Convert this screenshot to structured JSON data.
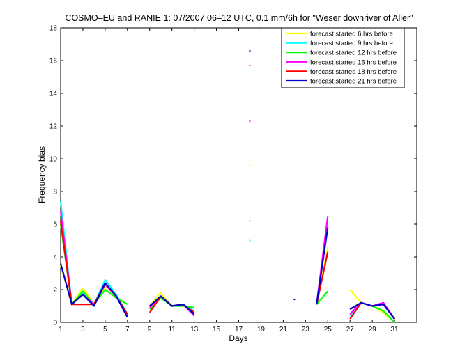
{
  "chart_data": {
    "type": "line",
    "title": "COSMO–EU and RANIE 1: 07/2007 06–12 UTC, 0.1 mm/6h for \"Weser downriver of Aller\"",
    "xlabel": "Days",
    "ylabel": "Frequency bias",
    "xlim": [
      1,
      33
    ],
    "ylim": [
      0,
      18
    ],
    "xticks": [
      1,
      3,
      5,
      7,
      9,
      11,
      13,
      15,
      17,
      19,
      21,
      23,
      25,
      27,
      29,
      31
    ],
    "yticks": [
      0,
      2,
      4,
      6,
      8,
      10,
      12,
      14,
      16,
      18
    ],
    "grid": false,
    "legend_position": "top-right",
    "x": [
      1,
      2,
      3,
      4,
      5,
      6,
      7,
      8,
      9,
      10,
      11,
      12,
      13,
      14,
      15,
      16,
      17,
      18,
      19,
      20,
      21,
      22,
      23,
      24,
      25,
      26,
      27,
      28,
      29,
      30,
      31
    ],
    "series": [
      {
        "name": "forecast started 6 hrs before",
        "color": "#ffff00",
        "values": [
          3.5,
          1.1,
          2.1,
          1.1,
          2.2,
          1.6,
          0.4,
          null,
          1.0,
          1.8,
          1.0,
          1.1,
          0.6,
          null,
          null,
          null,
          null,
          9.6,
          null,
          null,
          null,
          null,
          null,
          1.1,
          4.6,
          null,
          2.0,
          1.2,
          1.0,
          0.6,
          0.0
        ]
      },
      {
        "name": "forecast started 9 hrs before",
        "color": "#00ffff",
        "values": [
          7.4,
          1.1,
          1.8,
          1.1,
          2.6,
          1.7,
          0.5,
          null,
          1.0,
          1.6,
          1.0,
          1.1,
          0.7,
          null,
          null,
          null,
          null,
          5.0,
          null,
          null,
          null,
          null,
          null,
          1.1,
          6.2,
          null,
          0.4,
          1.2,
          1.0,
          1.2,
          0.2
        ]
      },
      {
        "name": "forecast started 12 hrs before",
        "color": "#00ff00",
        "values": [
          6.0,
          1.1,
          1.9,
          1.1,
          2.0,
          1.5,
          1.1,
          null,
          0.8,
          1.5,
          1.0,
          1.0,
          0.9,
          null,
          null,
          null,
          null,
          6.2,
          null,
          null,
          null,
          null,
          null,
          1.1,
          1.9,
          null,
          0.8,
          1.2,
          1.0,
          0.7,
          0.0
        ]
      },
      {
        "name": "forecast started 15 hrs before",
        "color": "#ff00ff",
        "values": [
          6.8,
          1.1,
          1.7,
          1.1,
          2.3,
          1.6,
          0.4,
          null,
          0.9,
          1.6,
          1.0,
          1.1,
          0.4,
          null,
          null,
          null,
          null,
          12.3,
          null,
          null,
          null,
          null,
          null,
          1.1,
          6.5,
          null,
          0.5,
          1.2,
          1.0,
          1.2,
          0.2
        ]
      },
      {
        "name": "forecast started 18 hrs before",
        "color": "#ff0000",
        "values": [
          6.2,
          1.1,
          1.1,
          1.1,
          2.4,
          1.6,
          0.5,
          null,
          0.6,
          1.6,
          1.0,
          1.1,
          0.6,
          null,
          null,
          null,
          null,
          15.7,
          null,
          null,
          null,
          null,
          null,
          1.1,
          4.3,
          null,
          0.2,
          1.2,
          1.0,
          1.1,
          0.2
        ]
      },
      {
        "name": "forecast started 21 hrs before",
        "color": "#0000cc",
        "values": [
          3.6,
          1.1,
          1.7,
          1.0,
          2.4,
          1.6,
          0.3,
          null,
          1.0,
          1.6,
          1.0,
          1.1,
          0.5,
          null,
          null,
          null,
          null,
          16.6,
          null,
          null,
          null,
          1.4,
          null,
          1.1,
          5.8,
          null,
          0.8,
          1.2,
          1.0,
          1.1,
          0.2
        ]
      }
    ]
  }
}
